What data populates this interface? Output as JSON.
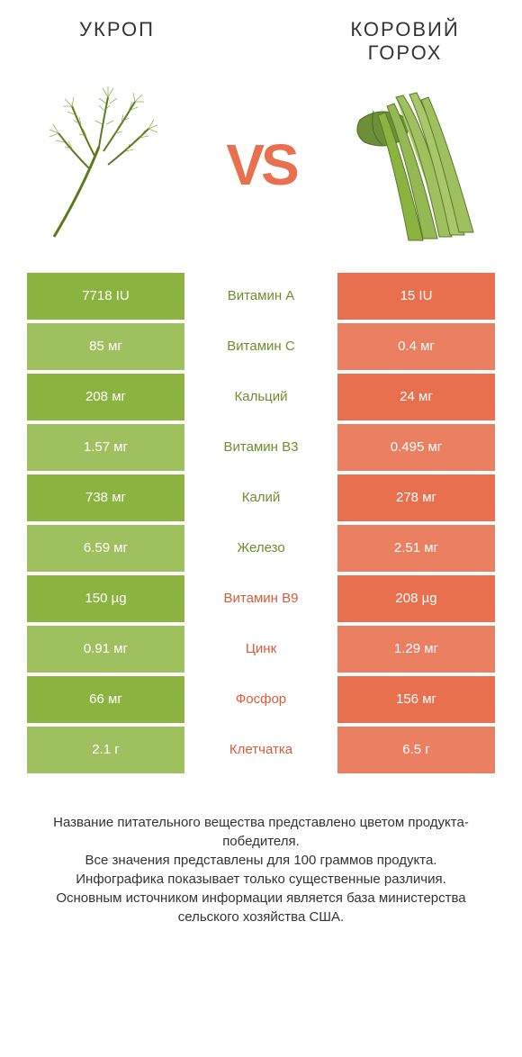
{
  "colors": {
    "green": "#8bb33f",
    "green_dim": "#9ec05e",
    "orange": "#e8704f",
    "orange_dim": "#ea7f62",
    "label_green": "#6d8f2a",
    "label_orange": "#d85b3a",
    "white": "#ffffff",
    "text": "#333333"
  },
  "header": {
    "left_title": "УКРОП",
    "right_title": "КОРОВИЙ ГОРОХ",
    "vs": "VS"
  },
  "rows": [
    {
      "label": "Витамин A",
      "left": "7718 IU",
      "right": "15 IU",
      "winner": "left"
    },
    {
      "label": "Витамин C",
      "left": "85 мг",
      "right": "0.4 мг",
      "winner": "left"
    },
    {
      "label": "Кальций",
      "left": "208 мг",
      "right": "24 мг",
      "winner": "left"
    },
    {
      "label": "Витамин B3",
      "left": "1.57 мг",
      "right": "0.495 мг",
      "winner": "left"
    },
    {
      "label": "Калий",
      "left": "738 мг",
      "right": "278 мг",
      "winner": "left"
    },
    {
      "label": "Железо",
      "left": "6.59 мг",
      "right": "2.51 мг",
      "winner": "left"
    },
    {
      "label": "Витамин B9",
      "left": "150 µg",
      "right": "208 µg",
      "winner": "right"
    },
    {
      "label": "Цинк",
      "left": "0.91 мг",
      "right": "1.29 мг",
      "winner": "right"
    },
    {
      "label": "Фосфор",
      "left": "66 мг",
      "right": "156 мг",
      "winner": "right"
    },
    {
      "label": "Клетчатка",
      "left": "2.1 г",
      "right": "6.5 г",
      "winner": "right"
    }
  ],
  "footer": {
    "line1": "Название питательного вещества представлено цветом продукта-победителя.",
    "line2": "Все значения представлены для 100 граммов продукта.",
    "line3": "Инфографика показывает только существенные различия.",
    "line4": "Основным источником информации является база министерства сельского хозяйства США."
  }
}
